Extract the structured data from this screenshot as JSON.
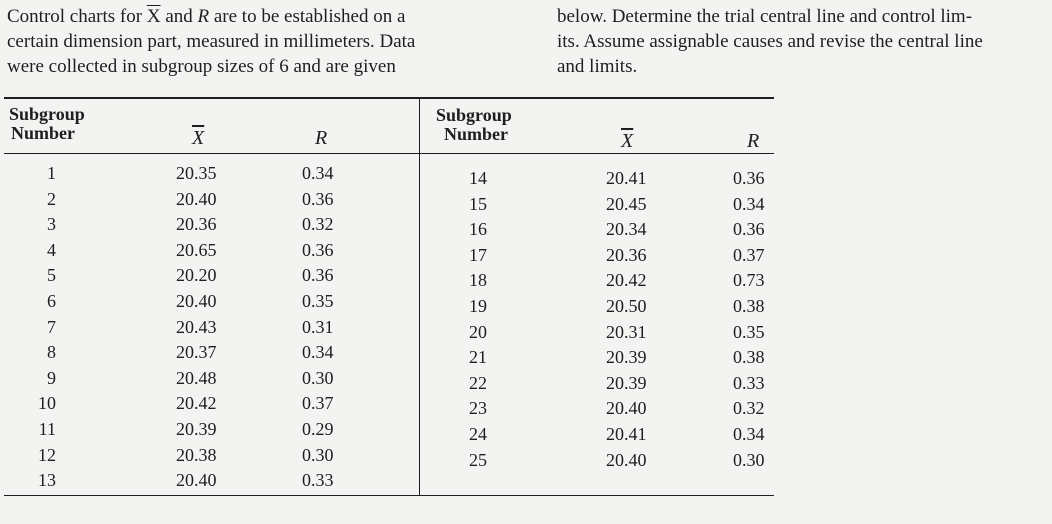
{
  "problem": {
    "left_lines": [
      [
        "Control charts for ",
        "X",
        " and ",
        "R",
        " are to be established on a"
      ],
      "certain dimension part, measured in millimeters. Data",
      "were collected in subgroup sizes of 6 and are given"
    ],
    "right_lines": [
      "below. Determine the trial central line and control lim-",
      "its. Assume assignable causes and revise the central line",
      "and limits."
    ]
  },
  "table": {
    "headers": {
      "subgroup_line1": "Subgroup",
      "subgroup_line2": "Number",
      "xbar": "X",
      "r": "R"
    },
    "left": {
      "numbers": [
        "1",
        "2",
        "3",
        "4",
        "5",
        "6",
        "7",
        "8",
        "9",
        "10",
        "11",
        "12",
        "13"
      ],
      "xbar": [
        "20.35",
        "20.40",
        "20.36",
        "20.65",
        "20.20",
        "20.40",
        "20.43",
        "20.37",
        "20.48",
        "20.42",
        "20.39",
        "20.38",
        "20.40"
      ],
      "r": [
        "0.34",
        "0.36",
        "0.32",
        "0.36",
        "0.36",
        "0.35",
        "0.31",
        "0.34",
        "0.30",
        "0.37",
        "0.29",
        "0.30",
        "0.33"
      ]
    },
    "right": {
      "numbers": [
        "14",
        "15",
        "16",
        "17",
        "18",
        "19",
        "20",
        "21",
        "22",
        "23",
        "24",
        "25"
      ],
      "xbar": [
        "20.41",
        "20.45",
        "20.34",
        "20.36",
        "20.42",
        "20.50",
        "20.31",
        "20.39",
        "20.39",
        "20.40",
        "20.41",
        "20.40"
      ],
      "r": [
        "0.36",
        "0.34",
        "0.36",
        "0.37",
        "0.73",
        "0.38",
        "0.35",
        "0.38",
        "0.33",
        "0.32",
        "0.34",
        "0.30"
      ]
    }
  }
}
